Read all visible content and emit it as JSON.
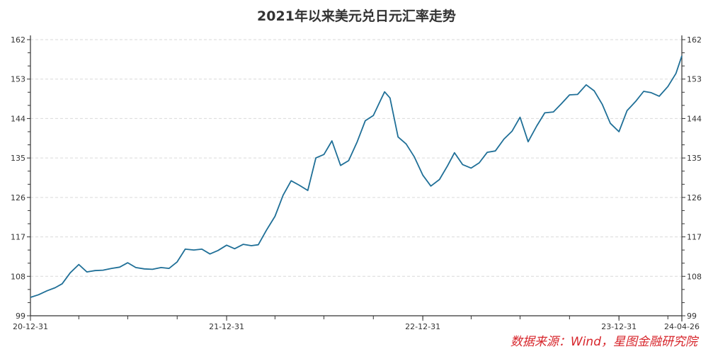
{
  "title": "2021年以来美元兑日元汇率走势",
  "source_note": "数据来源：Wind，星图金融研究院",
  "colors": {
    "line": "#1f6f97",
    "axis": "#333333",
    "grid": "#d9d9d9",
    "source": "#d7262c"
  },
  "chart_data": {
    "type": "line",
    "title": "2021年以来美元兑日元汇率走势",
    "xlabel": "",
    "ylabel": "",
    "ylim": [
      99,
      162
    ],
    "yticks": [
      99,
      108,
      117,
      126,
      135,
      144,
      153,
      162
    ],
    "x_tick_labels": [
      "20-12-31",
      "21-12-31",
      "22-12-31",
      "23-12-31",
      "24-04-26"
    ],
    "grid": "horizontal dashed",
    "legend": "none",
    "series": [
      {
        "name": "USD/JPY",
        "x": [
          "20-12-31",
          "21-01-15",
          "21-01-31",
          "21-02-15",
          "21-02-28",
          "21-03-15",
          "21-03-31",
          "21-04-15",
          "21-04-30",
          "21-05-15",
          "21-05-31",
          "21-06-15",
          "21-06-30",
          "21-07-15",
          "21-07-31",
          "21-08-15",
          "21-08-31",
          "21-09-15",
          "21-09-30",
          "21-10-15",
          "21-10-31",
          "21-11-15",
          "21-11-30",
          "21-12-15",
          "21-12-31",
          "22-01-15",
          "22-01-31",
          "22-02-15",
          "22-02-28",
          "22-03-15",
          "22-03-31",
          "22-04-15",
          "22-04-30",
          "22-05-15",
          "22-05-31",
          "22-06-15",
          "22-06-30",
          "22-07-15",
          "22-07-31",
          "22-08-15",
          "22-08-31",
          "22-09-15",
          "22-09-30",
          "22-10-15",
          "22-10-21",
          "22-10-31",
          "22-11-15",
          "22-11-30",
          "22-12-15",
          "22-12-31",
          "23-01-15",
          "23-01-31",
          "23-02-15",
          "23-02-28",
          "23-03-15",
          "23-03-31",
          "23-04-15",
          "23-04-30",
          "23-05-15",
          "23-05-31",
          "23-06-15",
          "23-06-30",
          "23-07-15",
          "23-07-31",
          "23-08-15",
          "23-08-31",
          "23-09-15",
          "23-09-30",
          "23-10-15",
          "23-10-31",
          "23-11-15",
          "23-11-30",
          "23-12-15",
          "23-12-31",
          "24-01-15",
          "24-01-31",
          "24-02-15",
          "24-02-29",
          "24-03-15",
          "24-03-31",
          "24-04-15",
          "24-04-26"
        ],
        "values": [
          103.2,
          103.8,
          104.7,
          105.4,
          106.3,
          108.8,
          110.7,
          109.0,
          109.3,
          109.4,
          109.8,
          110.1,
          111.1,
          110.0,
          109.7,
          109.6,
          110.0,
          109.8,
          111.3,
          114.2,
          114.0,
          114.2,
          113.1,
          113.9,
          115.1,
          114.3,
          115.3,
          115.0,
          115.2,
          118.5,
          121.7,
          126.5,
          129.8,
          128.8,
          127.6,
          135.0,
          135.8,
          138.9,
          133.3,
          134.4,
          138.7,
          143.5,
          144.7,
          148.6,
          150.1,
          148.7,
          139.8,
          138.2,
          135.3,
          131.1,
          128.6,
          130.1,
          133.2,
          136.2,
          133.5,
          132.7,
          133.9,
          136.3,
          136.6,
          139.3,
          141.1,
          144.3,
          138.7,
          142.3,
          145.3,
          145.5,
          147.4,
          149.4,
          149.5,
          151.7,
          150.3,
          147.2,
          142.9,
          141.0,
          145.8,
          147.9,
          150.2,
          149.9,
          149.1,
          151.3,
          154.3,
          158.3
        ]
      }
    ]
  }
}
